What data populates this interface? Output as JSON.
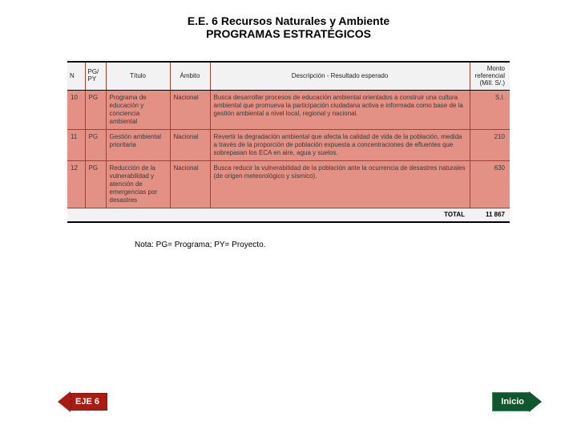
{
  "header": {
    "line1": "E.E. 6 Recursos Naturales y Ambiente",
    "line2": "PROGRAMAS ESTRATÉGICOS"
  },
  "table": {
    "columns": {
      "num": "N",
      "pgpy": "PG/ PY",
      "titulo": "Título",
      "ambito": "Ámbito",
      "descripcion": "Descripción - Resultado esperado",
      "monto": "Monto referencial (Mill. S/.)"
    },
    "rows": [
      {
        "num": "10",
        "pgpy": "PG",
        "titulo": "Programa de educación y conciencia ambiental",
        "ambito": "Nacional",
        "descripcion": "Busca desarrollar procesos de educación ambiental orientados a construir una cultura ambiental que promueva la participación ciudadana activa e informada como base de la gestión ambiental a nivel local, regional y nacional.",
        "monto": "S.I."
      },
      {
        "num": "11",
        "pgpy": "PG",
        "titulo": "Gestión ambiental prioritaria",
        "ambito": "Nacional",
        "descripcion": "Revertir la degradación ambiental que afecta la calidad de vida de la población, medida a través de la proporción de población expuesta a concentraciones de efluentes que sobrepasan los ECA en aire, agua y suelos.",
        "monto": "210"
      },
      {
        "num": "12",
        "pgpy": "PG",
        "titulo": "Reducción de la vulnerabilidad y atención de emergencias por desastres",
        "ambito": "Nacional",
        "descripcion": "Busca reducir la vulnerabilidad de la población ante la ocurrencia de desastres naturales (de origen meteorológico y sísmico).",
        "monto": "630"
      }
    ],
    "total_label": "TOTAL",
    "total_value": "11 867"
  },
  "note": "Nota: PG= Programa; PY= Proyecto.",
  "nav": {
    "back_label": "EJE 6",
    "home_label": "Inicio"
  },
  "style": {
    "row_bg": "#e39184",
    "row_border": "#9a423a",
    "header_bg": "#f2f2f2",
    "back_btn_color": "#a81c12",
    "home_btn_color": "#10562e"
  }
}
